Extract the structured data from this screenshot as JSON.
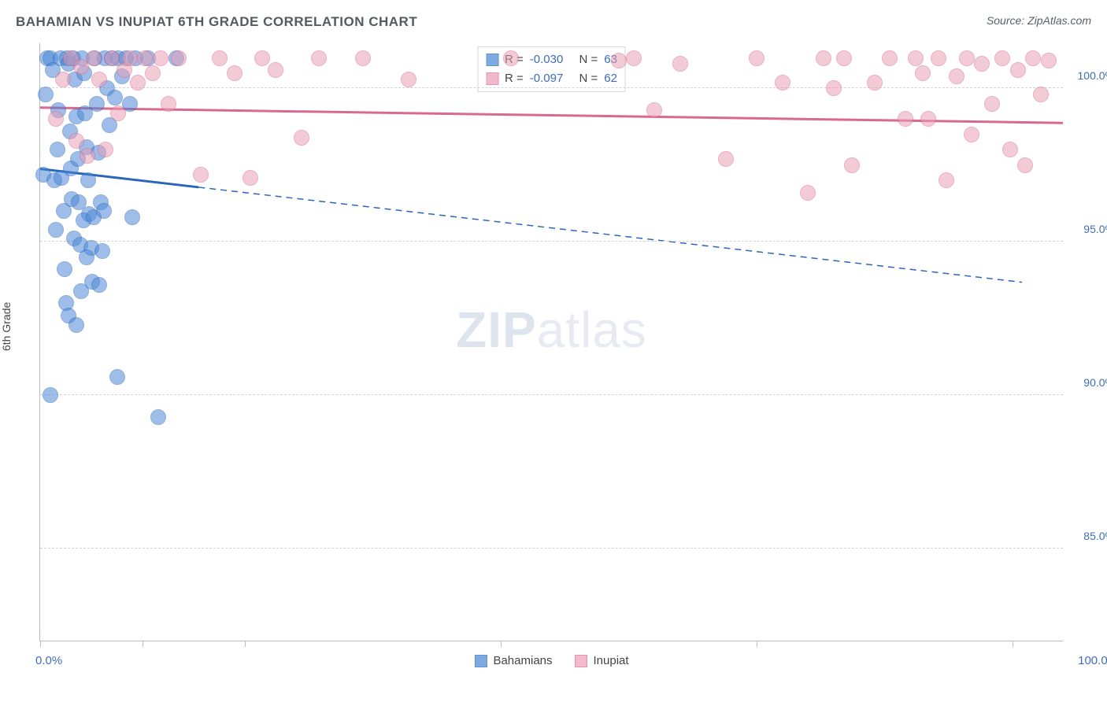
{
  "title": "BAHAMIAN VS INUPIAT 6TH GRADE CORRELATION CHART",
  "source_label": "Source:",
  "source_value": "ZipAtlas.com",
  "ylabel": "6th Grade",
  "watermark_bold": "ZIP",
  "watermark_rest": "atlas",
  "chart": {
    "type": "scatter",
    "xlim": [
      0,
      100
    ],
    "ylim": [
      82,
      101.5
    ],
    "x_axis_labels": {
      "left": "0.0%",
      "right": "100.0%"
    },
    "x_tick_positions": [
      0,
      10,
      20,
      45,
      70,
      95
    ],
    "y_gridlines": [
      85,
      90,
      95,
      100
    ],
    "y_tick_labels": [
      "85.0%",
      "90.0%",
      "95.0%",
      "100.0%"
    ],
    "background_color": "#ffffff",
    "grid_color": "#cfd3da",
    "axis_color": "#b8bcc4",
    "tick_label_color": "#3f6db5",
    "tick_fontsize": 14,
    "title_fontsize": 17,
    "title_color": "#555a60",
    "marker_radius": 10,
    "marker_stroke_width": 1.5,
    "marker_fill_opacity": 0.28,
    "series": [
      {
        "name": "Bahamians",
        "color": "#4a86d6",
        "stroke": "#2b66b8",
        "R": "-0.030",
        "N": "63",
        "trend": {
          "x1": 0,
          "y1": 97.4,
          "x2_solid": 15.5,
          "y2_solid": 96.8,
          "x2": 96,
          "y2": 93.7,
          "width_solid": 3,
          "width_dash": 1.5,
          "dash": "8,6"
        },
        "points": [
          [
            0.3,
            97.2
          ],
          [
            0.5,
            99.8
          ],
          [
            0.7,
            101.0
          ],
          [
            1.0,
            101.0
          ],
          [
            1.2,
            100.6
          ],
          [
            1.4,
            97.0
          ],
          [
            1.5,
            95.4
          ],
          [
            1.7,
            98.0
          ],
          [
            1.8,
            99.3
          ],
          [
            2.0,
            101.0
          ],
          [
            2.1,
            97.1
          ],
          [
            2.3,
            96.0
          ],
          [
            2.4,
            94.1
          ],
          [
            2.5,
            93.0
          ],
          [
            2.6,
            101.0
          ],
          [
            2.8,
            100.8
          ],
          [
            2.9,
            98.6
          ],
          [
            3.0,
            97.4
          ],
          [
            3.1,
            96.4
          ],
          [
            3.3,
            95.1
          ],
          [
            3.2,
            101.0
          ],
          [
            3.4,
            100.3
          ],
          [
            3.5,
            99.1
          ],
          [
            3.7,
            97.7
          ],
          [
            3.8,
            96.3
          ],
          [
            3.9,
            94.9
          ],
          [
            4.0,
            93.4
          ],
          [
            4.1,
            101.0
          ],
          [
            4.3,
            100.5
          ],
          [
            4.4,
            99.2
          ],
          [
            4.5,
            98.1
          ],
          [
            4.7,
            97.0
          ],
          [
            4.8,
            95.9
          ],
          [
            5.0,
            94.8
          ],
          [
            5.1,
            93.7
          ],
          [
            5.3,
            101.0
          ],
          [
            5.5,
            99.5
          ],
          [
            5.7,
            97.9
          ],
          [
            5.9,
            96.3
          ],
          [
            6.1,
            94.7
          ],
          [
            6.3,
            101.0
          ],
          [
            6.5,
            100.0
          ],
          [
            6.8,
            98.8
          ],
          [
            7.0,
            101.0
          ],
          [
            7.3,
            99.7
          ],
          [
            7.6,
            101.0
          ],
          [
            8.0,
            100.4
          ],
          [
            8.4,
            101.0
          ],
          [
            8.8,
            99.5
          ],
          [
            9.3,
            101.0
          ],
          [
            1.0,
            90.0
          ],
          [
            2.8,
            92.6
          ],
          [
            3.5,
            92.3
          ],
          [
            4.2,
            95.7
          ],
          [
            4.5,
            94.5
          ],
          [
            5.2,
            95.8
          ],
          [
            5.8,
            93.6
          ],
          [
            6.2,
            96.0
          ],
          [
            7.5,
            90.6
          ],
          [
            9.0,
            95.8
          ],
          [
            10.5,
            101.0
          ],
          [
            11.5,
            89.3
          ],
          [
            13.3,
            101.0
          ]
        ]
      },
      {
        "name": "Inupiat",
        "color": "#ea9eb5",
        "stroke": "#d96a8d",
        "R": "-0.097",
        "N": "62",
        "trend": {
          "x1": 0,
          "y1": 99.4,
          "x2_solid": 100,
          "y2_solid": 98.9,
          "x2": 100,
          "y2": 98.9,
          "width_solid": 3,
          "width_dash": 0,
          "dash": ""
        },
        "points": [
          [
            1.5,
            99.0
          ],
          [
            2.2,
            100.3
          ],
          [
            3.0,
            101.0
          ],
          [
            3.5,
            98.3
          ],
          [
            4.0,
            100.7
          ],
          [
            4.6,
            97.8
          ],
          [
            5.2,
            101.0
          ],
          [
            5.8,
            100.3
          ],
          [
            6.4,
            98.0
          ],
          [
            7.0,
            101.0
          ],
          [
            7.6,
            99.2
          ],
          [
            8.2,
            100.6
          ],
          [
            8.8,
            101.0
          ],
          [
            9.5,
            100.2
          ],
          [
            10.2,
            101.0
          ],
          [
            11.0,
            100.5
          ],
          [
            11.8,
            101.0
          ],
          [
            12.5,
            99.5
          ],
          [
            13.5,
            101.0
          ],
          [
            15.7,
            97.2
          ],
          [
            17.5,
            101.0
          ],
          [
            19.0,
            100.5
          ],
          [
            20.5,
            97.1
          ],
          [
            21.7,
            101.0
          ],
          [
            23.0,
            100.6
          ],
          [
            25.5,
            98.4
          ],
          [
            27.2,
            101.0
          ],
          [
            31.5,
            101.0
          ],
          [
            36.0,
            100.3
          ],
          [
            46.0,
            101.0
          ],
          [
            56.5,
            100.9
          ],
          [
            58.0,
            101.0
          ],
          [
            60.0,
            99.3
          ],
          [
            62.5,
            100.8
          ],
          [
            67.0,
            97.7
          ],
          [
            70.0,
            101.0
          ],
          [
            72.5,
            100.2
          ],
          [
            75.0,
            96.6
          ],
          [
            76.5,
            101.0
          ],
          [
            77.5,
            100.0
          ],
          [
            78.5,
            101.0
          ],
          [
            79.3,
            97.5
          ],
          [
            81.5,
            100.2
          ],
          [
            83.0,
            101.0
          ],
          [
            84.5,
            99.0
          ],
          [
            85.5,
            101.0
          ],
          [
            86.2,
            100.5
          ],
          [
            86.8,
            99.0
          ],
          [
            87.8,
            101.0
          ],
          [
            88.5,
            97.0
          ],
          [
            89.5,
            100.4
          ],
          [
            90.5,
            101.0
          ],
          [
            91.0,
            98.5
          ],
          [
            92.0,
            100.8
          ],
          [
            93.0,
            99.5
          ],
          [
            94.0,
            101.0
          ],
          [
            94.8,
            98.0
          ],
          [
            95.5,
            100.6
          ],
          [
            96.2,
            97.5
          ],
          [
            97.0,
            101.0
          ],
          [
            97.8,
            99.8
          ],
          [
            98.5,
            100.9
          ]
        ]
      }
    ]
  },
  "legend_top": {
    "r_label": "R =",
    "n_label": "N ="
  },
  "legend_bottom": {
    "items": [
      "Bahamians",
      "Inupiat"
    ]
  }
}
